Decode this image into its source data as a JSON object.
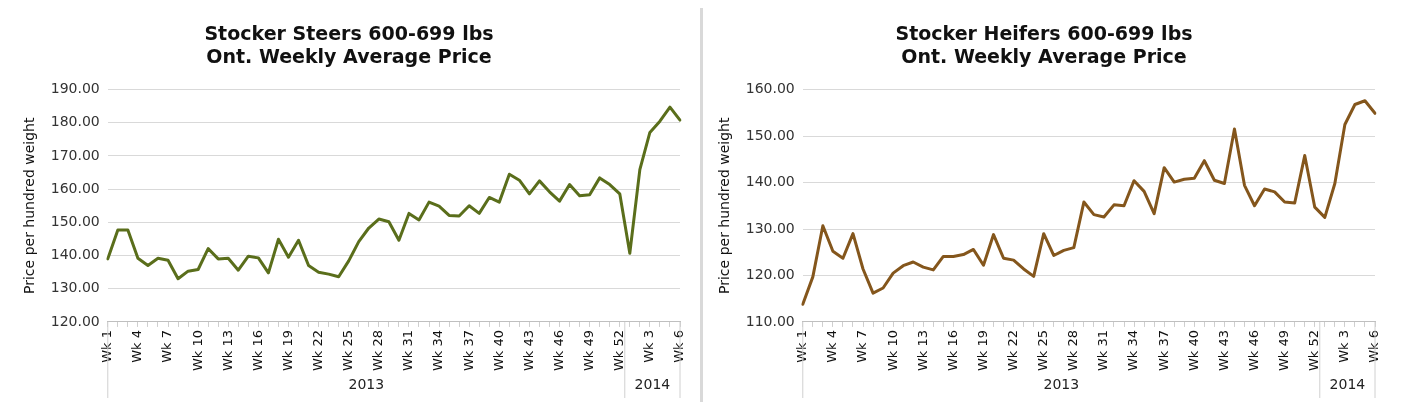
{
  "chart_data": [
    {
      "type": "line",
      "title": "Stocker Steers 600-699 lbs",
      "subtitle": "Ont. Weekly Average Price",
      "ylabel": "Price per hundred weight",
      "categories": [
        "Wk 1",
        null,
        null,
        "Wk 4",
        null,
        null,
        "Wk 7",
        null,
        null,
        "Wk 10",
        null,
        null,
        "Wk 13",
        null,
        null,
        "Wk 16",
        null,
        null,
        "Wk 19",
        null,
        null,
        "Wk 22",
        null,
        null,
        "Wk 25",
        null,
        null,
        "Wk 28",
        null,
        null,
        "Wk 31",
        null,
        null,
        "Wk 34",
        null,
        null,
        "Wk 37",
        null,
        null,
        "Wk 40",
        null,
        null,
        "Wk 43",
        null,
        null,
        "Wk 46",
        null,
        null,
        "Wk 49",
        null,
        null,
        "Wk 52",
        null,
        null,
        "Wk 3",
        null,
        null,
        "Wk 6"
      ],
      "series": [
        {
          "color": "#5a6e1b",
          "values": [
            139.0,
            147.7,
            147.7,
            139.2,
            137.0,
            139.2,
            138.6,
            133.0,
            135.3,
            135.8,
            142.1,
            139.0,
            139.2,
            135.6,
            139.8,
            139.3,
            134.8,
            144.9,
            139.5,
            144.6,
            137.0,
            135.0,
            134.4,
            133.6,
            138.4,
            144.2,
            148.3,
            151.0,
            150.2,
            144.6,
            152.7,
            150.7,
            156.1,
            154.9,
            152.1,
            151.9,
            155.0,
            152.7,
            157.5,
            156.1,
            164.5,
            162.7,
            158.6,
            162.5,
            159.2,
            156.4,
            161.4,
            158.0,
            158.3,
            163.4,
            161.4,
            158.6,
            140.7,
            165.9,
            177.1,
            180.5,
            184.7,
            180.8
          ]
        }
      ],
      "ylim": [
        120,
        190
      ],
      "yticks": [
        {
          "value": 120,
          "label": "120.00"
        },
        {
          "value": 130,
          "label": "130.00"
        },
        {
          "value": 140,
          "label": "140.00"
        },
        {
          "value": 150,
          "label": "150.00"
        },
        {
          "value": 160,
          "label": "160.00"
        },
        {
          "value": 170,
          "label": "170.00"
        },
        {
          "value": 180,
          "label": "180.00"
        },
        {
          "value": 190,
          "label": "190.00"
        }
      ],
      "annotations": [
        "2013",
        "2014"
      ],
      "grid": "y",
      "legend": false,
      "marker": "none",
      "line_style": "solid"
    },
    {
      "type": "line",
      "title": "Stocker Heifers 600-699 lbs",
      "subtitle": "Ont. Weekly Average Price",
      "ylabel": "Price per hundred weight",
      "categories": [
        "Wk 1",
        null,
        null,
        "Wk 4",
        null,
        null,
        "Wk 7",
        null,
        null,
        "Wk 10",
        null,
        null,
        "Wk 13",
        null,
        null,
        "Wk 16",
        null,
        null,
        "Wk 19",
        null,
        null,
        "Wk 22",
        null,
        null,
        "Wk 25",
        null,
        null,
        "Wk 28",
        null,
        null,
        "Wk 31",
        null,
        null,
        "Wk 34",
        null,
        null,
        "Wk 37",
        null,
        null,
        "Wk 40",
        null,
        null,
        "Wk 43",
        null,
        null,
        "Wk 46",
        null,
        null,
        "Wk 49",
        null,
        null,
        "Wk 52",
        null,
        null,
        "Wk 3",
        null,
        null,
        "Wk 6"
      ],
      "series": [
        {
          "color": "#84561c",
          "values": [
            113.8,
            119.7,
            130.7,
            125.2,
            123.7,
            129.0,
            121.4,
            116.2,
            117.3,
            120.5,
            122.1,
            122.9,
            121.8,
            121.2,
            124.1,
            124.1,
            124.5,
            125.6,
            122.2,
            128.8,
            123.7,
            123.3,
            121.4,
            119.8,
            129.0,
            124.3,
            125.4,
            126.0,
            135.8,
            133.1,
            132.6,
            135.2,
            135.0,
            140.4,
            138.1,
            133.3,
            143.2,
            140.1,
            140.7,
            140.9,
            144.7,
            140.5,
            139.8,
            151.5,
            139.4,
            135.0,
            138.6,
            138.0,
            135.8,
            135.6,
            145.8,
            134.7,
            132.5,
            139.8,
            152.5,
            156.8,
            157.6,
            154.9
          ]
        }
      ],
      "ylim": [
        110,
        160
      ],
      "yticks": [
        {
          "value": 110,
          "label": "110.00"
        },
        {
          "value": 120,
          "label": "120.00"
        },
        {
          "value": 130,
          "label": "130.00"
        },
        {
          "value": 140,
          "label": "140.00"
        },
        {
          "value": 150,
          "label": "150.00"
        },
        {
          "value": 160,
          "label": "160.00"
        }
      ],
      "annotations": [
        "2013",
        "2014"
      ],
      "grid": "y",
      "legend": false,
      "marker": "none",
      "line_style": "solid"
    }
  ]
}
